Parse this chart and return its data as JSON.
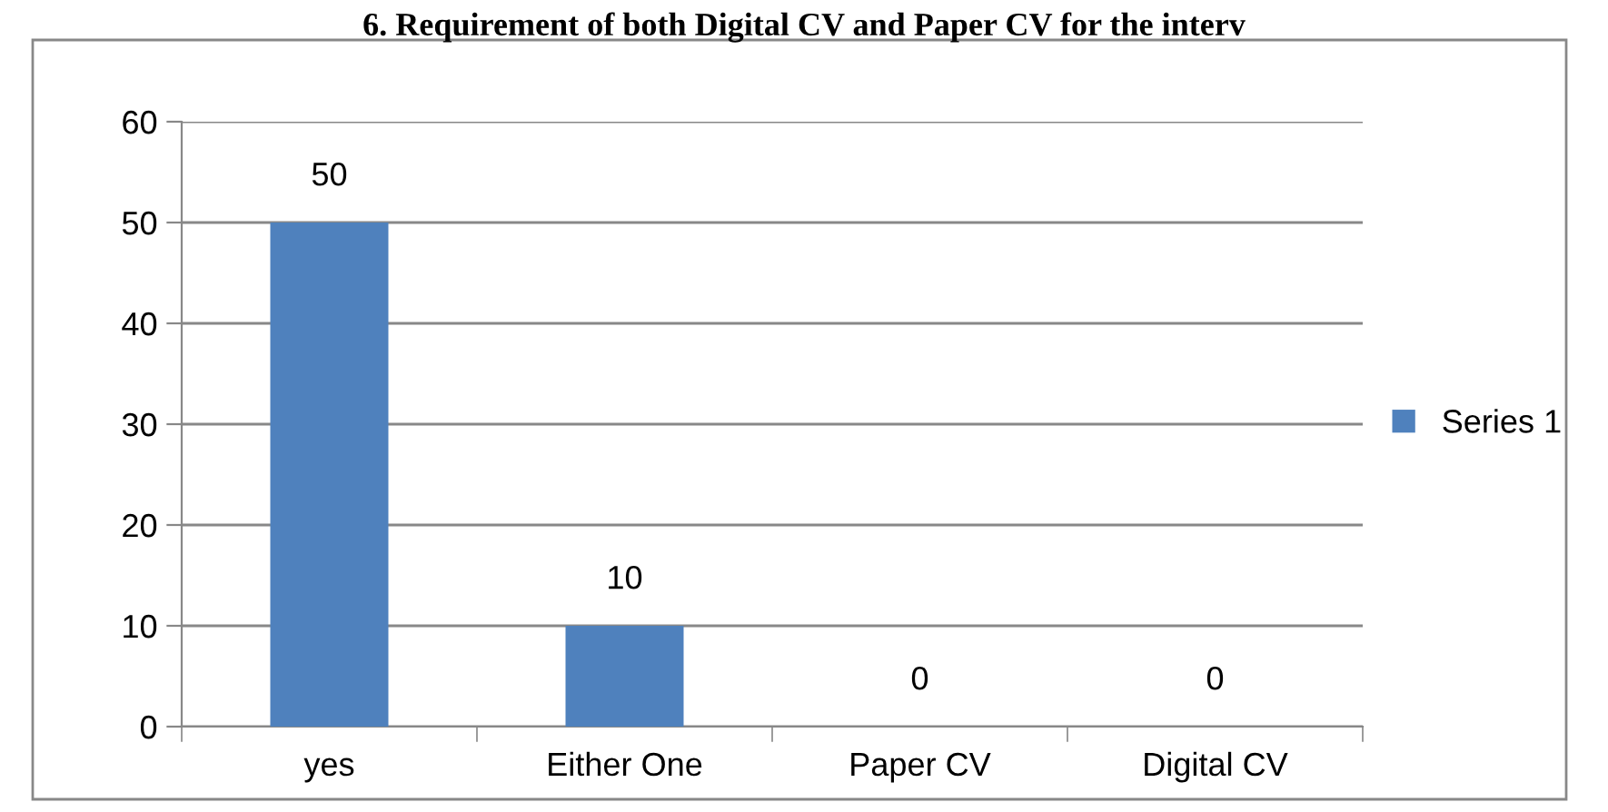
{
  "chart_data": {
    "type": "bar",
    "title": "6. Requirement of both Digital CV and Paper CV for the interv",
    "categories": [
      "yes",
      "Either One",
      "Paper CV",
      "Digital CV"
    ],
    "series": [
      {
        "name": "Series 1",
        "color": "#4f81bd",
        "values": [
          50,
          10,
          0,
          0
        ]
      }
    ],
    "ylim": [
      0,
      60
    ],
    "yticks": [
      0,
      10,
      20,
      30,
      40,
      50,
      60
    ],
    "grid": "y",
    "legend": "right",
    "data_labels": true
  }
}
